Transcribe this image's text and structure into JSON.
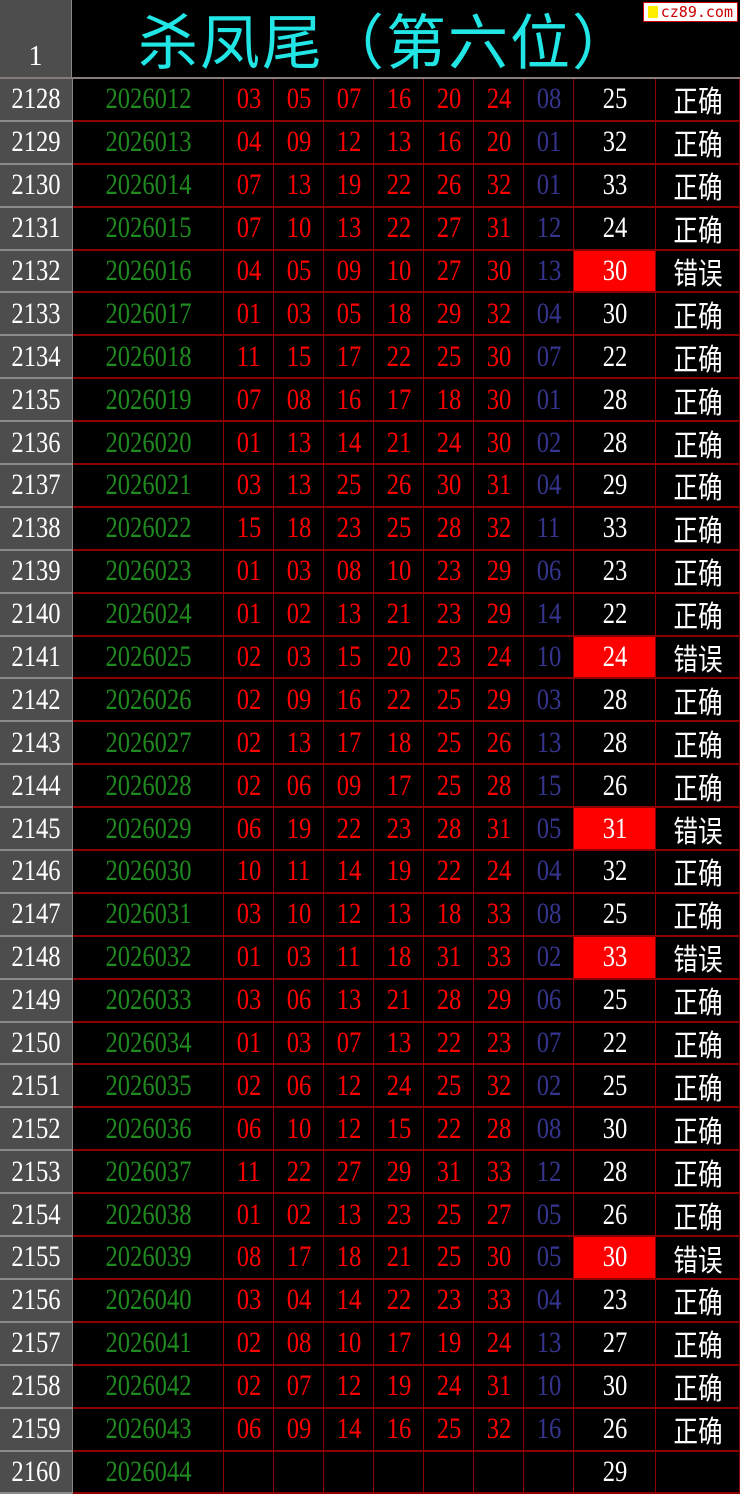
{
  "header": {
    "row_number": "1",
    "title": "杀凤尾（第六位）",
    "watermark": "cz89.com"
  },
  "colors": {
    "issue": "#1f8a1f",
    "number": "#ff0000",
    "special": "#35358f",
    "error_bg": "#ff0000",
    "title": "#22e5e5",
    "grid": "#8b0000"
  },
  "rows": [
    {
      "n": "2128",
      "issue": "2026012",
      "nums": [
        "03",
        "05",
        "07",
        "16",
        "20",
        "24",
        "08"
      ],
      "val": "25",
      "status": "正确"
    },
    {
      "n": "2129",
      "issue": "2026013",
      "nums": [
        "04",
        "09",
        "12",
        "13",
        "16",
        "20",
        "01"
      ],
      "val": "32",
      "status": "正确"
    },
    {
      "n": "2130",
      "issue": "2026014",
      "nums": [
        "07",
        "13",
        "19",
        "22",
        "26",
        "32",
        "01"
      ],
      "val": "33",
      "status": "正确"
    },
    {
      "n": "2131",
      "issue": "2026015",
      "nums": [
        "07",
        "10",
        "13",
        "22",
        "27",
        "31",
        "12"
      ],
      "val": "24",
      "status": "正确"
    },
    {
      "n": "2132",
      "issue": "2026016",
      "nums": [
        "04",
        "05",
        "09",
        "10",
        "27",
        "30",
        "13"
      ],
      "val": "30",
      "status": "错误"
    },
    {
      "n": "2133",
      "issue": "2026017",
      "nums": [
        "01",
        "03",
        "05",
        "18",
        "29",
        "32",
        "04"
      ],
      "val": "30",
      "status": "正确"
    },
    {
      "n": "2134",
      "issue": "2026018",
      "nums": [
        "11",
        "15",
        "17",
        "22",
        "25",
        "30",
        "07"
      ],
      "val": "22",
      "status": "正确"
    },
    {
      "n": "2135",
      "issue": "2026019",
      "nums": [
        "07",
        "08",
        "16",
        "17",
        "18",
        "30",
        "01"
      ],
      "val": "28",
      "status": "正确"
    },
    {
      "n": "2136",
      "issue": "2026020",
      "nums": [
        "01",
        "13",
        "14",
        "21",
        "24",
        "30",
        "02"
      ],
      "val": "28",
      "status": "正确"
    },
    {
      "n": "2137",
      "issue": "2026021",
      "nums": [
        "03",
        "13",
        "25",
        "26",
        "30",
        "31",
        "04"
      ],
      "val": "29",
      "status": "正确"
    },
    {
      "n": "2138",
      "issue": "2026022",
      "nums": [
        "15",
        "18",
        "23",
        "25",
        "28",
        "32",
        "11"
      ],
      "val": "33",
      "status": "正确"
    },
    {
      "n": "2139",
      "issue": "2026023",
      "nums": [
        "01",
        "03",
        "08",
        "10",
        "23",
        "29",
        "06"
      ],
      "val": "23",
      "status": "正确"
    },
    {
      "n": "2140",
      "issue": "2026024",
      "nums": [
        "01",
        "02",
        "13",
        "21",
        "23",
        "29",
        "14"
      ],
      "val": "22",
      "status": "正确"
    },
    {
      "n": "2141",
      "issue": "2026025",
      "nums": [
        "02",
        "03",
        "15",
        "20",
        "23",
        "24",
        "10"
      ],
      "val": "24",
      "status": "错误"
    },
    {
      "n": "2142",
      "issue": "2026026",
      "nums": [
        "02",
        "09",
        "16",
        "22",
        "25",
        "29",
        "03"
      ],
      "val": "28",
      "status": "正确"
    },
    {
      "n": "2143",
      "issue": "2026027",
      "nums": [
        "02",
        "13",
        "17",
        "18",
        "25",
        "26",
        "13"
      ],
      "val": "28",
      "status": "正确"
    },
    {
      "n": "2144",
      "issue": "2026028",
      "nums": [
        "02",
        "06",
        "09",
        "17",
        "25",
        "28",
        "15"
      ],
      "val": "26",
      "status": "正确"
    },
    {
      "n": "2145",
      "issue": "2026029",
      "nums": [
        "06",
        "19",
        "22",
        "23",
        "28",
        "31",
        "05"
      ],
      "val": "31",
      "status": "错误"
    },
    {
      "n": "2146",
      "issue": "2026030",
      "nums": [
        "10",
        "11",
        "14",
        "19",
        "22",
        "24",
        "04"
      ],
      "val": "32",
      "status": "正确"
    },
    {
      "n": "2147",
      "issue": "2026031",
      "nums": [
        "03",
        "10",
        "12",
        "13",
        "18",
        "33",
        "08"
      ],
      "val": "25",
      "status": "正确"
    },
    {
      "n": "2148",
      "issue": "2026032",
      "nums": [
        "01",
        "03",
        "11",
        "18",
        "31",
        "33",
        "02"
      ],
      "val": "33",
      "status": "错误"
    },
    {
      "n": "2149",
      "issue": "2026033",
      "nums": [
        "03",
        "06",
        "13",
        "21",
        "28",
        "29",
        "06"
      ],
      "val": "25",
      "status": "正确"
    },
    {
      "n": "2150",
      "issue": "2026034",
      "nums": [
        "01",
        "03",
        "07",
        "13",
        "22",
        "23",
        "07"
      ],
      "val": "22",
      "status": "正确"
    },
    {
      "n": "2151",
      "issue": "2026035",
      "nums": [
        "02",
        "06",
        "12",
        "24",
        "25",
        "32",
        "02"
      ],
      "val": "25",
      "status": "正确"
    },
    {
      "n": "2152",
      "issue": "2026036",
      "nums": [
        "06",
        "10",
        "12",
        "15",
        "22",
        "28",
        "08"
      ],
      "val": "30",
      "status": "正确"
    },
    {
      "n": "2153",
      "issue": "2026037",
      "nums": [
        "11",
        "22",
        "27",
        "29",
        "31",
        "33",
        "12"
      ],
      "val": "28",
      "status": "正确"
    },
    {
      "n": "2154",
      "issue": "2026038",
      "nums": [
        "01",
        "02",
        "13",
        "23",
        "25",
        "27",
        "05"
      ],
      "val": "26",
      "status": "正确"
    },
    {
      "n": "2155",
      "issue": "2026039",
      "nums": [
        "08",
        "17",
        "18",
        "21",
        "25",
        "30",
        "05"
      ],
      "val": "30",
      "status": "错误"
    },
    {
      "n": "2156",
      "issue": "2026040",
      "nums": [
        "03",
        "04",
        "14",
        "22",
        "23",
        "33",
        "04"
      ],
      "val": "23",
      "status": "正确"
    },
    {
      "n": "2157",
      "issue": "2026041",
      "nums": [
        "02",
        "08",
        "10",
        "17",
        "19",
        "24",
        "13"
      ],
      "val": "27",
      "status": "正确"
    },
    {
      "n": "2158",
      "issue": "2026042",
      "nums": [
        "02",
        "07",
        "12",
        "19",
        "24",
        "31",
        "10"
      ],
      "val": "30",
      "status": "正确"
    },
    {
      "n": "2159",
      "issue": "2026043",
      "nums": [
        "06",
        "09",
        "14",
        "16",
        "25",
        "32",
        "16"
      ],
      "val": "26",
      "status": "正确"
    },
    {
      "n": "2160",
      "issue": "2026044",
      "nums": [
        "",
        "",
        "",
        "",
        "",
        "",
        ""
      ],
      "val": "29",
      "status": ""
    }
  ]
}
